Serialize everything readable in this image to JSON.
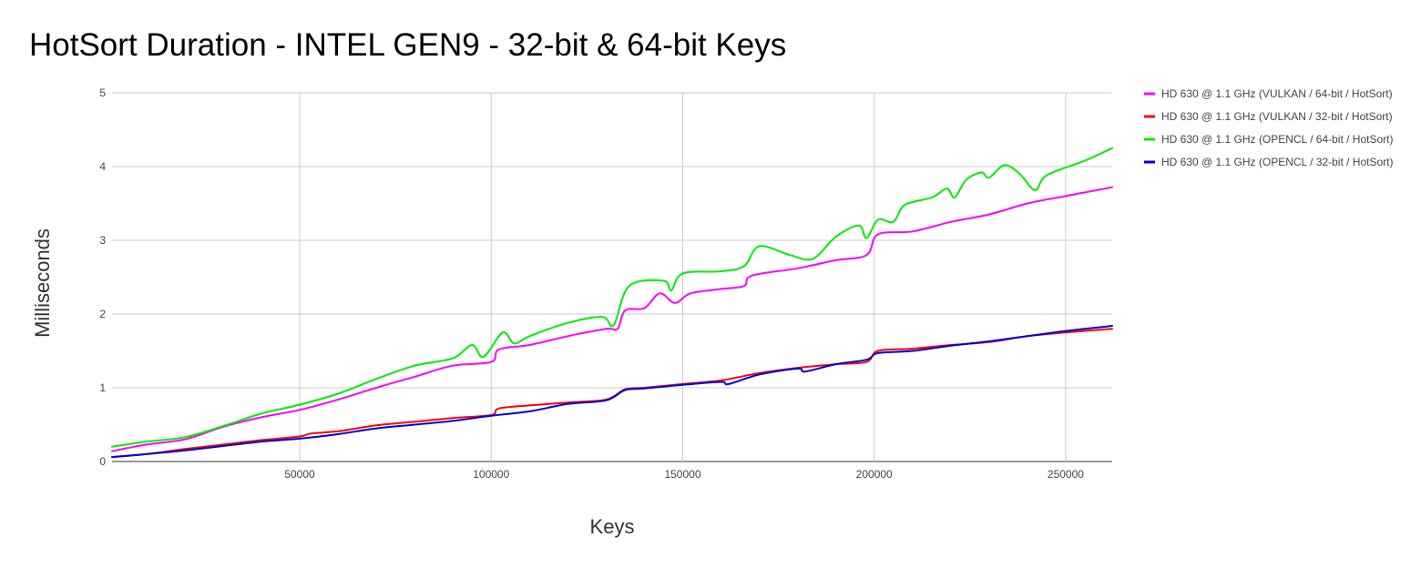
{
  "chart_data": {
    "type": "line",
    "title": "HotSort Duration - INTEL GEN9 - 32-bit & 64-bit Keys",
    "xlabel": "Keys",
    "ylabel": "Milliseconds",
    "xlim": [
      1000,
      262144
    ],
    "ylim": [
      0,
      5
    ],
    "xticks": [
      50000,
      100000,
      150000,
      200000,
      250000
    ],
    "yticks": [
      0,
      1,
      2,
      3,
      4,
      5
    ],
    "grid": true,
    "legend_position": "right",
    "series": [
      {
        "name": "HD 630 @ 1.1 GHz (VULKAN / 64-bit / HotSort)",
        "color": "#ff00ff",
        "points": [
          [
            1000,
            0.14
          ],
          [
            10000,
            0.23
          ],
          [
            20000,
            0.3
          ],
          [
            30000,
            0.47
          ],
          [
            40000,
            0.6
          ],
          [
            50000,
            0.7
          ],
          [
            60000,
            0.84
          ],
          [
            70000,
            1.0
          ],
          [
            80000,
            1.15
          ],
          [
            90000,
            1.3
          ],
          [
            100000,
            1.35
          ],
          [
            102000,
            1.52
          ],
          [
            110000,
            1.58
          ],
          [
            120000,
            1.7
          ],
          [
            130000,
            1.8
          ],
          [
            133000,
            1.8
          ],
          [
            135000,
            2.05
          ],
          [
            140000,
            2.08
          ],
          [
            144000,
            2.28
          ],
          [
            148000,
            2.15
          ],
          [
            152000,
            2.28
          ],
          [
            160000,
            2.34
          ],
          [
            166000,
            2.38
          ],
          [
            168000,
            2.52
          ],
          [
            180000,
            2.62
          ],
          [
            190000,
            2.73
          ],
          [
            198000,
            2.8
          ],
          [
            201000,
            3.08
          ],
          [
            210000,
            3.12
          ],
          [
            220000,
            3.25
          ],
          [
            230000,
            3.35
          ],
          [
            240000,
            3.5
          ],
          [
            250000,
            3.6
          ],
          [
            262144,
            3.72
          ]
        ]
      },
      {
        "name": "HD 630 @ 1.1 GHz (VULKAN / 32-bit / HotSort)",
        "color": "#ff0000",
        "points": [
          [
            1000,
            0.06
          ],
          [
            10000,
            0.1
          ],
          [
            20000,
            0.17
          ],
          [
            30000,
            0.23
          ],
          [
            40000,
            0.29
          ],
          [
            50000,
            0.34
          ],
          [
            53000,
            0.38
          ],
          [
            60000,
            0.41
          ],
          [
            70000,
            0.49
          ],
          [
            80000,
            0.54
          ],
          [
            90000,
            0.59
          ],
          [
            100000,
            0.63
          ],
          [
            102000,
            0.72
          ],
          [
            110000,
            0.76
          ],
          [
            120000,
            0.8
          ],
          [
            130000,
            0.84
          ],
          [
            135000,
            0.98
          ],
          [
            140000,
            1.0
          ],
          [
            150000,
            1.05
          ],
          [
            160000,
            1.1
          ],
          [
            170000,
            1.2
          ],
          [
            180000,
            1.27
          ],
          [
            190000,
            1.32
          ],
          [
            198000,
            1.35
          ],
          [
            201000,
            1.5
          ],
          [
            210000,
            1.53
          ],
          [
            220000,
            1.58
          ],
          [
            230000,
            1.62
          ],
          [
            240000,
            1.7
          ],
          [
            250000,
            1.75
          ],
          [
            262144,
            1.8
          ]
        ]
      },
      {
        "name": "HD 630 @ 1.1 GHz (OPENCL / 64-bit / HotSort)",
        "color": "#00ee00",
        "points": [
          [
            1000,
            0.2
          ],
          [
            10000,
            0.27
          ],
          [
            20000,
            0.33
          ],
          [
            30000,
            0.48
          ],
          [
            40000,
            0.65
          ],
          [
            50000,
            0.77
          ],
          [
            60000,
            0.92
          ],
          [
            70000,
            1.12
          ],
          [
            80000,
            1.3
          ],
          [
            90000,
            1.4
          ],
          [
            95000,
            1.58
          ],
          [
            98000,
            1.42
          ],
          [
            103000,
            1.75
          ],
          [
            106000,
            1.6
          ],
          [
            110000,
            1.7
          ],
          [
            120000,
            1.88
          ],
          [
            129000,
            1.96
          ],
          [
            132000,
            1.85
          ],
          [
            136000,
            2.38
          ],
          [
            145000,
            2.45
          ],
          [
            147000,
            2.32
          ],
          [
            150000,
            2.55
          ],
          [
            160000,
            2.58
          ],
          [
            166000,
            2.65
          ],
          [
            170000,
            2.92
          ],
          [
            178000,
            2.8
          ],
          [
            184000,
            2.75
          ],
          [
            190000,
            3.05
          ],
          [
            196000,
            3.2
          ],
          [
            198000,
            3.03
          ],
          [
            201000,
            3.28
          ],
          [
            205000,
            3.25
          ],
          [
            208000,
            3.48
          ],
          [
            215000,
            3.58
          ],
          [
            219000,
            3.7
          ],
          [
            221000,
            3.58
          ],
          [
            224000,
            3.82
          ],
          [
            228000,
            3.92
          ],
          [
            230000,
            3.85
          ],
          [
            234000,
            4.02
          ],
          [
            238000,
            3.9
          ],
          [
            242000,
            3.68
          ],
          [
            245000,
            3.88
          ],
          [
            255000,
            4.08
          ],
          [
            262144,
            4.25
          ]
        ]
      },
      {
        "name": "HD 630 @ 1.1 GHz (OPENCL / 32-bit / HotSort)",
        "color": "#0000dd",
        "points": [
          [
            1000,
            0.06
          ],
          [
            10000,
            0.1
          ],
          [
            20000,
            0.15
          ],
          [
            30000,
            0.21
          ],
          [
            40000,
            0.27
          ],
          [
            50000,
            0.31
          ],
          [
            60000,
            0.37
          ],
          [
            70000,
            0.45
          ],
          [
            80000,
            0.5
          ],
          [
            90000,
            0.55
          ],
          [
            100000,
            0.62
          ],
          [
            110000,
            0.68
          ],
          [
            120000,
            0.78
          ],
          [
            130000,
            0.83
          ],
          [
            135000,
            0.97
          ],
          [
            140000,
            0.99
          ],
          [
            150000,
            1.04
          ],
          [
            160000,
            1.08
          ],
          [
            162000,
            1.05
          ],
          [
            170000,
            1.18
          ],
          [
            180000,
            1.26
          ],
          [
            182000,
            1.22
          ],
          [
            190000,
            1.32
          ],
          [
            198000,
            1.38
          ],
          [
            201000,
            1.47
          ],
          [
            210000,
            1.5
          ],
          [
            220000,
            1.57
          ],
          [
            230000,
            1.63
          ],
          [
            240000,
            1.7
          ],
          [
            250000,
            1.77
          ],
          [
            262144,
            1.84
          ]
        ]
      }
    ]
  }
}
